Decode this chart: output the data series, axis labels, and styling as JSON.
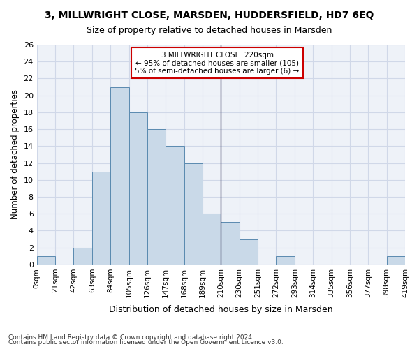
{
  "title": "3, MILLWRIGHT CLOSE, MARSDEN, HUDDERSFIELD, HD7 6EQ",
  "subtitle": "Size of property relative to detached houses in Marsden",
  "xlabel": "Distribution of detached houses by size in Marsden",
  "ylabel": "Number of detached properties",
  "footnote1": "Contains HM Land Registry data © Crown copyright and database right 2024.",
  "footnote2": "Contains public sector information licensed under the Open Government Licence v3.0.",
  "bin_labels": [
    "0sqm",
    "21sqm",
    "42sqm",
    "63sqm",
    "84sqm",
    "105sqm",
    "126sqm",
    "147sqm",
    "168sqm",
    "189sqm",
    "210sqm",
    "230sqm",
    "251sqm",
    "272sqm",
    "293sqm",
    "314sqm",
    "335sqm",
    "356sqm",
    "377sqm",
    "398sqm",
    "419sqm"
  ],
  "bar_values": [
    1,
    0,
    2,
    11,
    21,
    18,
    16,
    14,
    12,
    6,
    5,
    3,
    0,
    1,
    0,
    0,
    0,
    0,
    0,
    1
  ],
  "bar_color": "#c9d9e8",
  "bar_edge_color": "#5a8ab0",
  "ylim": [
    0,
    26
  ],
  "yticks": [
    0,
    2,
    4,
    6,
    8,
    10,
    12,
    14,
    16,
    18,
    20,
    22,
    24,
    26
  ],
  "vline_x": 10.0,
  "annotation_title": "3 MILLWRIGHT CLOSE: 220sqm",
  "annotation_line1": "← 95% of detached houses are smaller (105)",
  "annotation_line2": "5% of semi-detached houses are larger (6) →",
  "annotation_box_color": "#ffffff",
  "annotation_box_edge_color": "#cc0000",
  "grid_color": "#d0d8e8",
  "background_color": "#eef2f8"
}
